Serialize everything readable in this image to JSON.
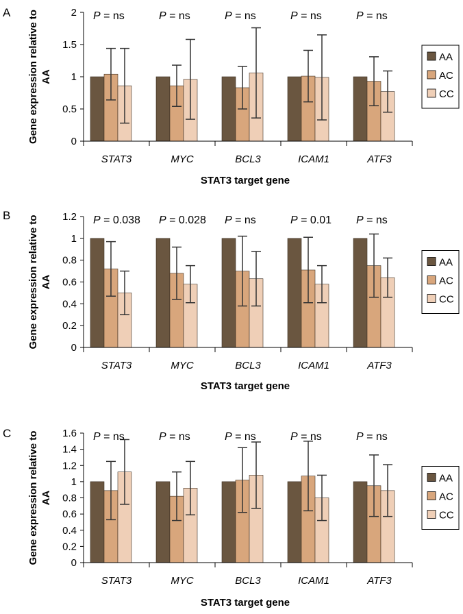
{
  "colors": {
    "AA": "#6a5640",
    "AC": "#d8a67c",
    "CC": "#efcfb7",
    "axis": "#000000",
    "error_bar": "#333333"
  },
  "legend_entries": [
    "AA",
    "AC",
    "CC"
  ],
  "p_prefix": "P",
  "chart_data": [
    {
      "type": "bar",
      "panel_label": "A",
      "categories": [
        "STAT3",
        "MYC",
        "BCL3",
        "ICAM1",
        "ATF3"
      ],
      "series": [
        {
          "name": "AA",
          "values": [
            1,
            1,
            1,
            1,
            1
          ],
          "errors": [
            0,
            0,
            0,
            0,
            0
          ]
        },
        {
          "name": "AC",
          "values": [
            1.04,
            0.86,
            0.83,
            1.01,
            0.93
          ],
          "errors": [
            0.4,
            0.32,
            0.33,
            0.4,
            0.38
          ]
        },
        {
          "name": "CC",
          "values": [
            0.86,
            0.96,
            1.06,
            0.99,
            0.77
          ],
          "errors": [
            0.58,
            0.62,
            0.7,
            0.66,
            0.32
          ]
        }
      ],
      "p_values": [
        "= ns",
        "= ns",
        "= ns",
        "= ns",
        "= ns"
      ],
      "ylim": [
        0,
        2
      ],
      "yticks": [
        "0",
        "0.5",
        "1",
        "1.5",
        "2"
      ],
      "ylabel": "Gene expression relative to AA",
      "xlabel": "STAT3 target gene",
      "legend": "right"
    },
    {
      "type": "bar",
      "panel_label": "B",
      "categories": [
        "STAT3",
        "MYC",
        "BCL3",
        "ICAM1",
        "ATF3"
      ],
      "series": [
        {
          "name": "AA",
          "values": [
            1,
            1,
            1,
            1,
            1
          ],
          "errors": [
            0,
            0,
            0,
            0,
            0
          ]
        },
        {
          "name": "AC",
          "values": [
            0.72,
            0.68,
            0.7,
            0.71,
            0.75
          ],
          "errors": [
            0.25,
            0.24,
            0.32,
            0.3,
            0.29
          ]
        },
        {
          "name": "CC",
          "values": [
            0.5,
            0.58,
            0.63,
            0.58,
            0.64
          ],
          "errors": [
            0.2,
            0.17,
            0.25,
            0.17,
            0.18
          ]
        }
      ],
      "p_values": [
        "= 0.038",
        "= 0.028",
        "= ns",
        "= 0.01",
        "= ns"
      ],
      "ylim": [
        0,
        1.2
      ],
      "yticks": [
        "0",
        "0.2",
        "0.4",
        "0.6",
        "0.8",
        "1",
        "1.2"
      ],
      "ylabel": "Gene expression relative to AA",
      "xlabel": "STAT3 target gene",
      "legend": "right"
    },
    {
      "type": "bar",
      "panel_label": "C",
      "categories": [
        "STAT3",
        "MYC",
        "BCL3",
        "ICAM1",
        "ATF3"
      ],
      "series": [
        {
          "name": "AA",
          "values": [
            1,
            1,
            1,
            1,
            1
          ],
          "errors": [
            0,
            0,
            0,
            0,
            0
          ]
        },
        {
          "name": "AC",
          "values": [
            0.89,
            0.82,
            1.02,
            1.07,
            0.95
          ],
          "errors": [
            0.36,
            0.3,
            0.4,
            0.43,
            0.38
          ]
        },
        {
          "name": "CC",
          "values": [
            1.12,
            0.92,
            1.08,
            0.8,
            0.89
          ],
          "errors": [
            0.4,
            0.33,
            0.41,
            0.28,
            0.32
          ]
        }
      ],
      "p_values": [
        "= ns",
        "= ns",
        "= ns",
        "= ns",
        "= ns"
      ],
      "ylim": [
        0,
        1.6
      ],
      "yticks": [
        "0",
        "0.2",
        "0.4",
        "0.6",
        "0.8",
        "1",
        "1.2",
        "1.4",
        "1.6"
      ],
      "ylabel": "Gene expression relative to AA",
      "xlabel": "STAT3 target gene",
      "legend": "right"
    }
  ]
}
